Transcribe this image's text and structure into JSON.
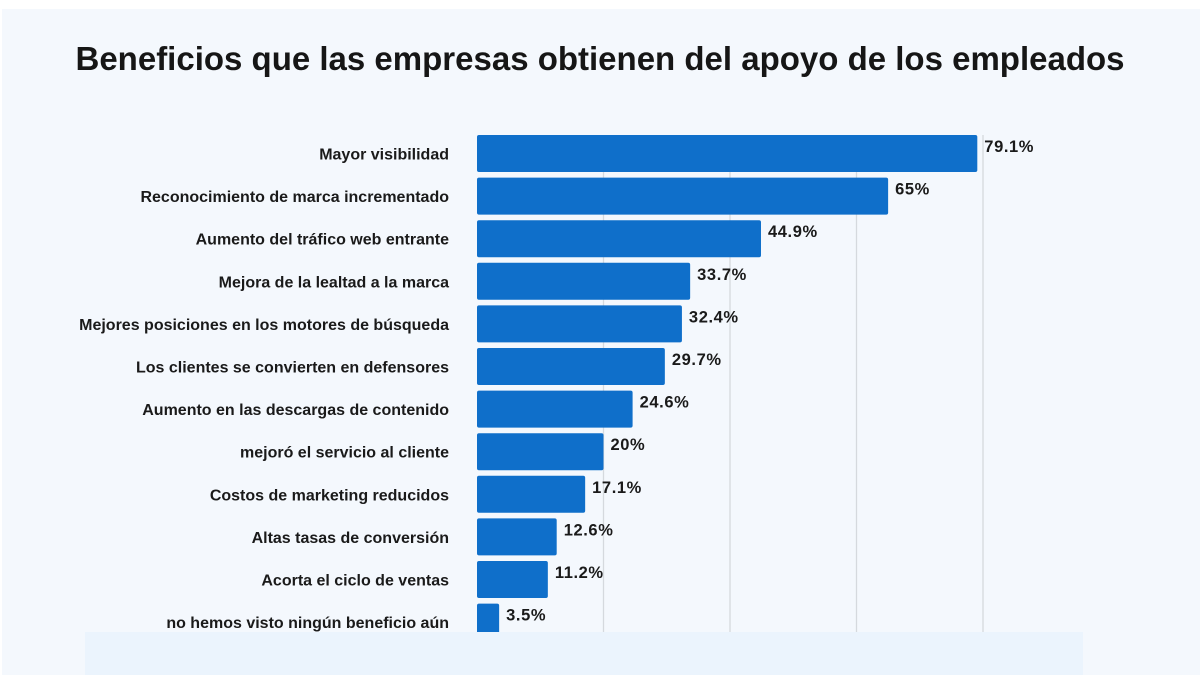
{
  "chart_data": {
    "type": "bar",
    "orientation": "horizontal",
    "title": "Beneficios que las empresas obtienen del apoyo de los empleados",
    "categories": [
      "Mayor visibilidad",
      "Reconocimiento de marca incrementado",
      "Aumento del tráfico web entrante",
      "Mejora de la lealtad a la marca",
      "Mejores posiciones en los motores de búsqueda",
      "Los clientes se convierten en defensores",
      "Aumento en las descargas de contenido",
      "mejoró el servicio al cliente",
      "Costos de marketing reducidos",
      "Altas tasas de conversión",
      "Acorta el ciclo de ventas",
      "no hemos visto ningún beneficio aún"
    ],
    "values": [
      79.1,
      65,
      44.9,
      33.7,
      32.4,
      29.7,
      24.6,
      20,
      17.1,
      12.6,
      11.2,
      3.5
    ],
    "data_labels": [
      "79.1%",
      "65%",
      "44.9%",
      "33.7%",
      "32.4%",
      "29.7%",
      "24.6%",
      "20%",
      "17.1%",
      "12.6%",
      "11.2%",
      "3.5%"
    ],
    "xlim": [
      0,
      80
    ],
    "grid": true,
    "bar_color": "#0f6fca",
    "xlabel": "",
    "ylabel": ""
  }
}
